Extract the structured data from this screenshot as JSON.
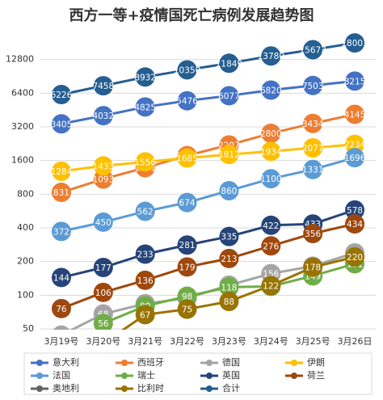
{
  "chart_data": {
    "type": "line",
    "title": "西方一等+疫情国死亡病例发展趋势图",
    "categories": [
      "3月19号",
      "3月20号",
      "3月21号",
      "3月22号",
      "3月23号",
      "3月24号",
      "3月25号",
      "3月26日"
    ],
    "log_scale": true,
    "grid": true,
    "legend": "bottom",
    "ylim": [
      50,
      25600
    ],
    "yticks": [
      50,
      100,
      200,
      400,
      800,
      1600,
      3200,
      6400,
      12800
    ],
    "series": [
      {
        "name": "意大利",
        "color": "#4472c4",
        "values": [
          3405,
          4032,
          4825,
          5476,
          6077,
          6820,
          7503,
          8215
        ]
      },
      {
        "name": "西班牙",
        "color": "#ed7d31",
        "values": [
          831,
          1093,
          1381,
          1772,
          2207,
          2800,
          3434,
          4145
        ]
      },
      {
        "name": "德国",
        "color": "#a5a5a5",
        "values": [
          44,
          68,
          84,
          94,
          123,
          156,
          182,
          239
        ]
      },
      {
        "name": "伊朗",
        "color": "#ffc000",
        "values": [
          1284,
          1433,
          1556,
          1685,
          1812,
          1934,
          2077,
          2234
        ]
      },
      {
        "name": "法国",
        "color": "#5b9bd5",
        "values": [
          372,
          450,
          562,
          674,
          860,
          1100,
          1331,
          1696
        ]
      },
      {
        "name": "瑞士",
        "color": "#70ad47",
        "values": [
          null,
          56,
          80,
          98,
          118,
          120,
          149,
          191
        ]
      },
      {
        "name": "英国",
        "color": "#264478",
        "values": [
          144,
          177,
          233,
          281,
          335,
          422,
          433,
          578
        ]
      },
      {
        "name": "荷兰",
        "color": "#9e480e",
        "values": [
          76,
          106,
          136,
          179,
          213,
          276,
          356,
          434
        ]
      },
      {
        "name": "奥地利",
        "color": "#636363",
        "values": [
          null,
          null,
          null,
          null,
          null,
          null,
          null,
          null
        ]
      },
      {
        "name": "比利时",
        "color": "#997300",
        "values": [
          null,
          37,
          67,
          75,
          88,
          122,
          178,
          220
        ]
      },
      {
        "name": "合计",
        "color": "#255e91",
        "values": [
          6226,
          7458,
          8932,
          10350,
          11849,
          13780,
          15673,
          18001
        ]
      }
    ]
  }
}
